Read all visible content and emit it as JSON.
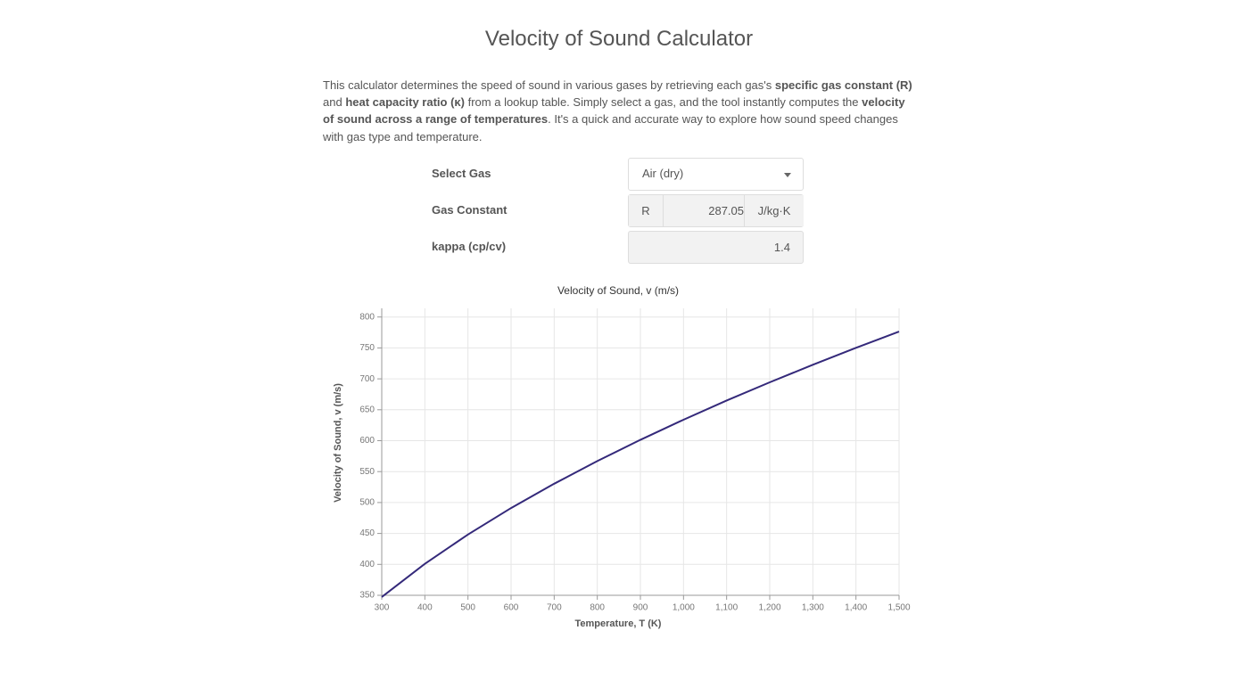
{
  "header": {
    "title": "Velocity of Sound Calculator"
  },
  "description": [
    {
      "text": "This calculator determines the speed of sound in various gases by retrieving each gas's "
    },
    {
      "text": "specific gas constant (R)",
      "bold": true
    },
    {
      "text": " and "
    },
    {
      "text": "heat capacity ratio (κ)",
      "bold": true
    },
    {
      "text": " from a lookup table. Simply select a gas, and the tool instantly computes the "
    },
    {
      "text": "velocity of sound across a range of temperatures",
      "bold": true
    },
    {
      "text": ". It's a quick and accurate way to explore how sound speed changes with gas type and temperature."
    }
  ],
  "form": {
    "gas": {
      "label": "Select Gas",
      "value": "Air (dry)"
    },
    "gas_constant": {
      "label": "Gas Constant",
      "prefix": "R",
      "value": "287.05",
      "unit": "J/kg·K"
    },
    "kappa": {
      "label": "kappa (cp/cv)",
      "value": "1.4"
    }
  },
  "chart_data": {
    "type": "line",
    "title": "Velocity of Sound, v (m/s)",
    "x_label": "Temperature, T (K)",
    "y_label": "Velocity of Sound, v (m/s)",
    "x": [
      300,
      400,
      500,
      600,
      700,
      800,
      900,
      1000,
      1100,
      1200,
      1300,
      1400,
      1500
    ],
    "series": [
      {
        "name": "Velocity of Sound, v (m/s)",
        "color": "#34297a",
        "values": [
          347.2,
          400.9,
          448.3,
          491.1,
          530.4,
          567.0,
          601.4,
          633.9,
          664.9,
          694.4,
          722.8,
          750.1,
          776.4
        ]
      }
    ],
    "xlim": [
      300,
      1500
    ],
    "xticks": [
      300,
      400,
      500,
      600,
      700,
      800,
      900,
      {
        "value": 1000,
        "label": "1,000"
      },
      {
        "value": 1100,
        "label": "1,100"
      },
      {
        "value": 1200,
        "label": "1,200"
      },
      {
        "value": 1300,
        "label": "1,300"
      },
      {
        "value": 1400,
        "label": "1,400"
      },
      {
        "value": 1500,
        "label": "1,500"
      }
    ],
    "ylim": [
      350,
      814
    ],
    "yticks": [
      350,
      400,
      450,
      500,
      550,
      600,
      650,
      700,
      750,
      800
    ],
    "grid": true
  }
}
